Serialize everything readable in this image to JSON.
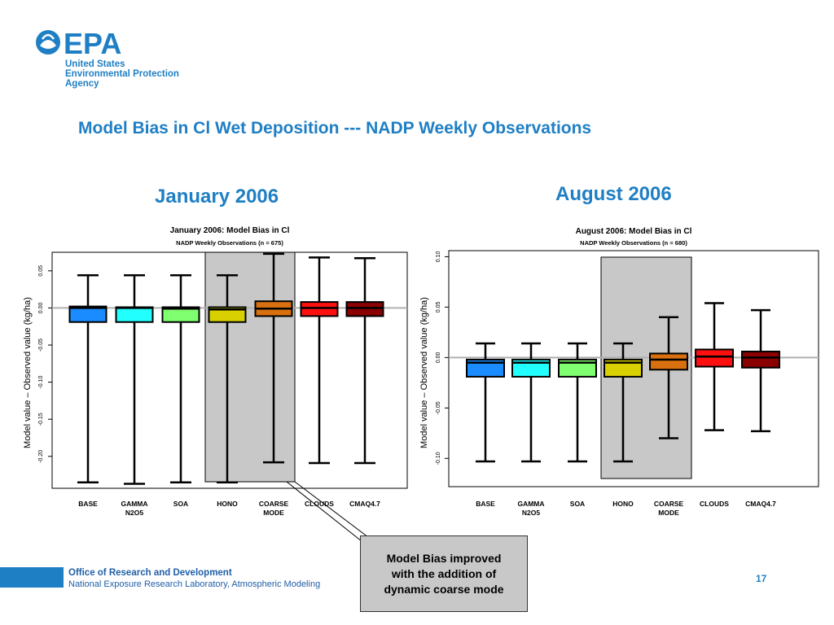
{
  "logo": {
    "mark": "EPA",
    "icon": "epa-flower-icon",
    "lines": [
      "United States",
      "Environmental Protection",
      "Agency"
    ]
  },
  "slide_title": "Model Bias in Cl Wet Deposition --- NADP Weekly Observations",
  "panel_titles": {
    "left": "January 2006",
    "right": "August 2006"
  },
  "footer": {
    "org": "Office of Research and Development",
    "lab": "National Exposure Research Laboratory, Atmospheric Modeling",
    "page": "17"
  },
  "callout": "Model Bias improved\nwith the addition of\ndynamic coarse mode",
  "colors": {
    "brand": "#1f7fc4",
    "highlight": "#c8c8c8",
    "zero_line": "#b0b0b0"
  },
  "chart_data": [
    {
      "type": "box",
      "title": "January  2006: Model Bias in Cl",
      "subtitle": "NADP Weekly Observations (n = 675)",
      "ylabel": "Model value – Observed value (kg/ha)",
      "ylim": [
        -0.243,
        0.075
      ],
      "yticks": [
        0.05,
        0.0,
        -0.05,
        -0.1,
        -0.15,
        -0.2
      ],
      "ytick_labels": [
        "0.05",
        "0.00",
        "-0.05",
        "-0.10",
        "-0.15",
        "-0.20"
      ],
      "categories": [
        "BASE",
        "GAMMA\nN2O5",
        "SOA",
        "HONO",
        "COARSE\nMODE",
        "CLOUDS",
        "CMAQ4.7"
      ],
      "colors": [
        "#1a8cff",
        "#22ffff",
        "#80ff70",
        "#d8d000",
        "#d87010",
        "#ff1010",
        "#8b0000"
      ],
      "highlight_category": "HONO",
      "boxes": [
        {
          "name": "BASE",
          "low": -0.235,
          "q1": -0.019,
          "median": 0.0,
          "q3": 0.002,
          "high": 0.044
        },
        {
          "name": "GAMMA N2O5",
          "low": -0.237,
          "q1": -0.019,
          "median": 0.0,
          "q3": 0.001,
          "high": 0.044
        },
        {
          "name": "SOA",
          "low": -0.235,
          "q1": -0.019,
          "median": -0.001,
          "q3": 0.001,
          "high": 0.044
        },
        {
          "name": "HONO",
          "low": -0.235,
          "q1": -0.019,
          "median": -0.002,
          "q3": 0.001,
          "high": 0.044
        },
        {
          "name": "COARSE MODE",
          "low": -0.208,
          "q1": -0.011,
          "median": -0.001,
          "q3": 0.009,
          "high": 0.073
        },
        {
          "name": "CLOUDS",
          "low": -0.209,
          "q1": -0.011,
          "median": 0.0,
          "q3": 0.008,
          "high": 0.068
        },
        {
          "name": "CMAQ4.7",
          "low": -0.209,
          "q1": -0.011,
          "median": 0.0,
          "q3": 0.008,
          "high": 0.067
        }
      ]
    },
    {
      "type": "box",
      "title": "August  2006: Model Bias in Cl",
      "subtitle": "NADP Weekly Observations (n = 680)",
      "ylabel": "Model value – Observed value (kg/ha)",
      "ylim": [
        -0.128,
        0.106
      ],
      "yticks": [
        0.1,
        0.05,
        0.0,
        -0.05,
        -0.1
      ],
      "ytick_labels": [
        "0.10",
        "0.05",
        "0.00",
        "-0.05",
        "-0.10"
      ],
      "categories": [
        "BASE",
        "GAMMA\nN2O5",
        "SOA",
        "HONO",
        "COARSE\nMODE",
        "CLOUDS",
        "CMAQ4.7"
      ],
      "colors": [
        "#1a8cff",
        "#22ffff",
        "#80ff70",
        "#d8d000",
        "#d87010",
        "#ff1010",
        "#8b0000"
      ],
      "highlight_category": "HONO",
      "boxes": [
        {
          "name": "BASE",
          "low": -0.103,
          "q1": -0.019,
          "median": -0.005,
          "q3": -0.002,
          "high": 0.014
        },
        {
          "name": "GAMMA N2O5",
          "low": -0.103,
          "q1": -0.019,
          "median": -0.005,
          "q3": -0.002,
          "high": 0.014
        },
        {
          "name": "SOA",
          "low": -0.103,
          "q1": -0.019,
          "median": -0.005,
          "q3": -0.002,
          "high": 0.014
        },
        {
          "name": "HONO",
          "low": -0.103,
          "q1": -0.019,
          "median": -0.005,
          "q3": -0.002,
          "high": 0.014
        },
        {
          "name": "COARSE MODE",
          "low": -0.08,
          "q1": -0.012,
          "median": -0.002,
          "q3": 0.004,
          "high": 0.04
        },
        {
          "name": "CLOUDS",
          "low": -0.072,
          "q1": -0.009,
          "median": 0.001,
          "q3": 0.008,
          "high": 0.054
        },
        {
          "name": "CMAQ4.7",
          "low": -0.073,
          "q1": -0.01,
          "median": 0.0,
          "q3": 0.006,
          "high": 0.047
        }
      ]
    }
  ]
}
